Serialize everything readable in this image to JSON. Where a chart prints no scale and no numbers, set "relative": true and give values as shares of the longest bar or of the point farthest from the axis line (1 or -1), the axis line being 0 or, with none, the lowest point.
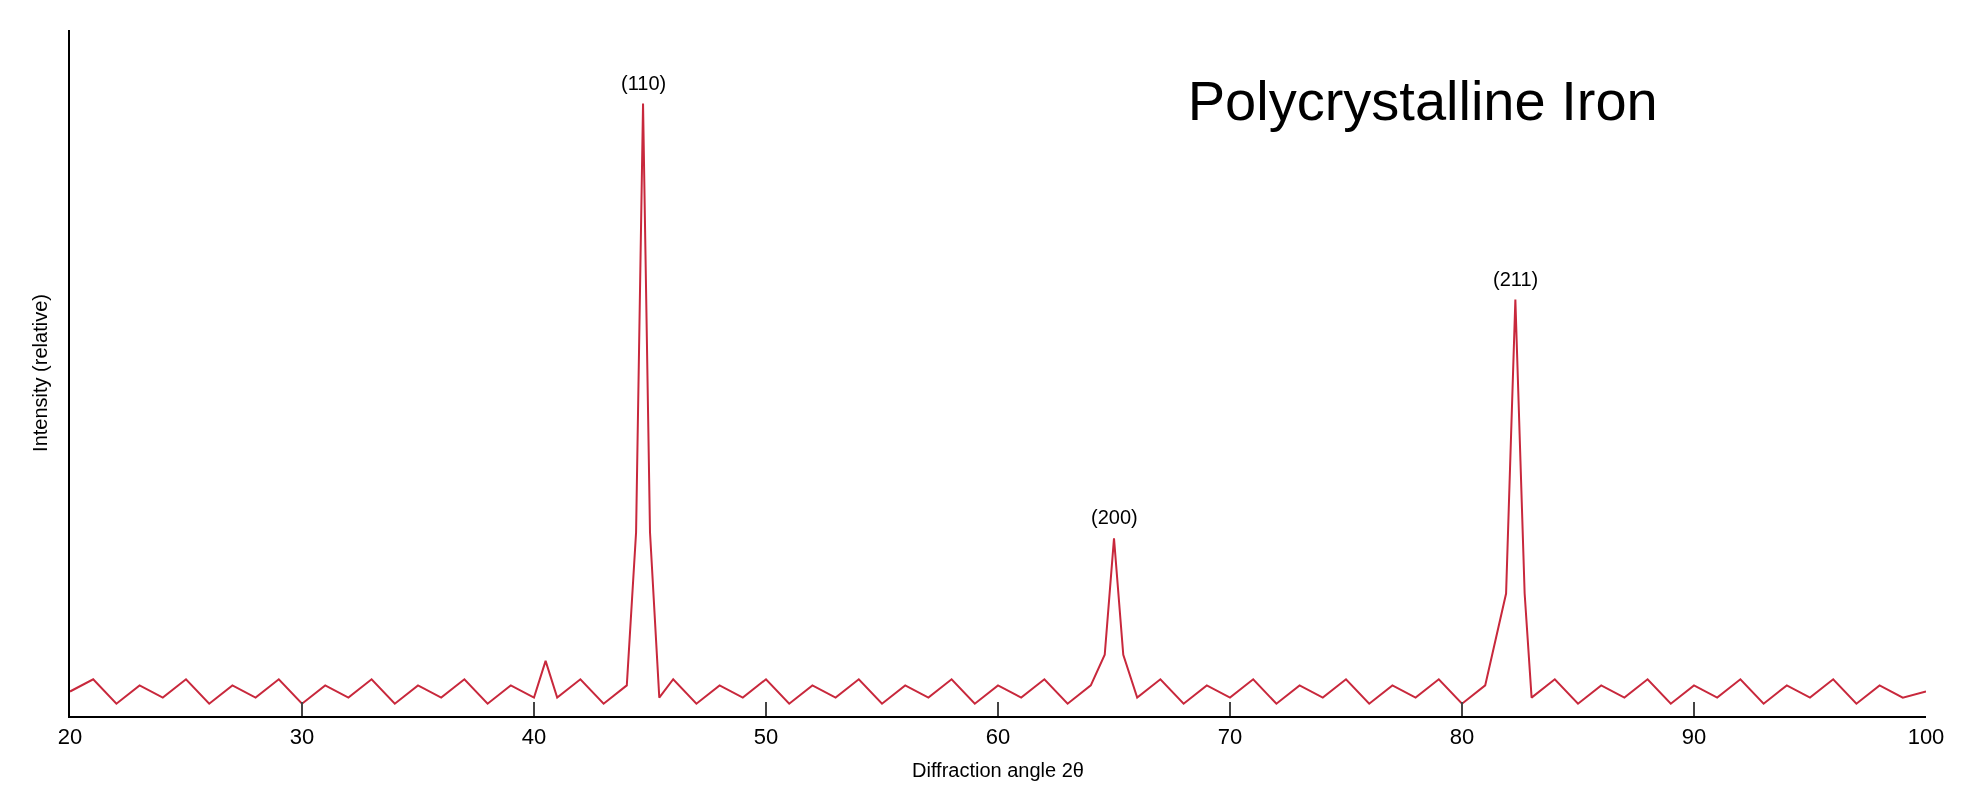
{
  "chart_data": {
    "type": "line",
    "title": "Polycrystalline Iron",
    "xlabel": "Diffraction angle 2θ",
    "ylabel": "Intensity (relative)",
    "relative": true,
    "x": [
      20,
      21,
      22,
      23,
      24,
      25,
      26,
      27,
      28,
      29,
      30,
      31,
      32,
      33,
      34,
      35,
      36,
      37,
      38,
      39,
      40,
      40.5,
      41,
      42,
      43,
      44,
      44.4,
      44.7,
      45.0,
      45.4,
      46,
      47,
      48,
      49,
      50,
      51,
      52,
      53,
      54,
      55,
      56,
      57,
      58,
      59,
      60,
      61,
      62,
      63,
      64,
      64.6,
      65.0,
      65.4,
      66,
      67,
      68,
      69,
      70,
      71,
      72,
      73,
      74,
      75,
      76,
      77,
      78,
      79,
      80,
      81,
      81.9,
      82.3,
      82.7,
      83,
      84,
      85,
      86,
      87,
      88,
      89,
      90,
      91,
      92,
      93,
      94,
      95,
      96,
      97,
      98,
      99,
      100
    ],
    "series": [
      {
        "color": "#c8283c",
        "values": [
          0.04,
          0.06,
          0.02,
          0.05,
          0.03,
          0.06,
          0.02,
          0.05,
          0.03,
          0.06,
          0.02,
          0.05,
          0.03,
          0.06,
          0.02,
          0.05,
          0.03,
          0.06,
          0.02,
          0.05,
          0.03,
          0.09,
          0.03,
          0.06,
          0.02,
          0.05,
          0.3,
          1.0,
          0.3,
          0.03,
          0.06,
          0.02,
          0.05,
          0.03,
          0.06,
          0.02,
          0.05,
          0.03,
          0.06,
          0.02,
          0.05,
          0.03,
          0.06,
          0.02,
          0.05,
          0.03,
          0.06,
          0.02,
          0.05,
          0.1,
          0.29,
          0.1,
          0.03,
          0.06,
          0.02,
          0.05,
          0.03,
          0.06,
          0.02,
          0.05,
          0.03,
          0.06,
          0.02,
          0.05,
          0.03,
          0.06,
          0.02,
          0.05,
          0.2,
          0.68,
          0.2,
          0.03,
          0.06,
          0.02,
          0.05,
          0.03,
          0.06,
          0.02,
          0.05,
          0.03,
          0.06,
          0.02,
          0.05,
          0.03,
          0.06,
          0.02,
          0.05,
          0.03,
          0.04
        ]
      }
    ],
    "annotations": [
      {
        "text": "(110)",
        "x": 44.7,
        "y": 1.0
      },
      {
        "text": "(200)",
        "x": 65.0,
        "y": 0.29
      },
      {
        "text": "(211)",
        "x": 82.3,
        "y": 0.68
      }
    ],
    "xlim": [
      20,
      100
    ],
    "xticks": [
      20,
      30,
      40,
      50,
      60,
      70,
      80,
      90,
      100
    ],
    "marker": "none",
    "line_style": "solid"
  }
}
